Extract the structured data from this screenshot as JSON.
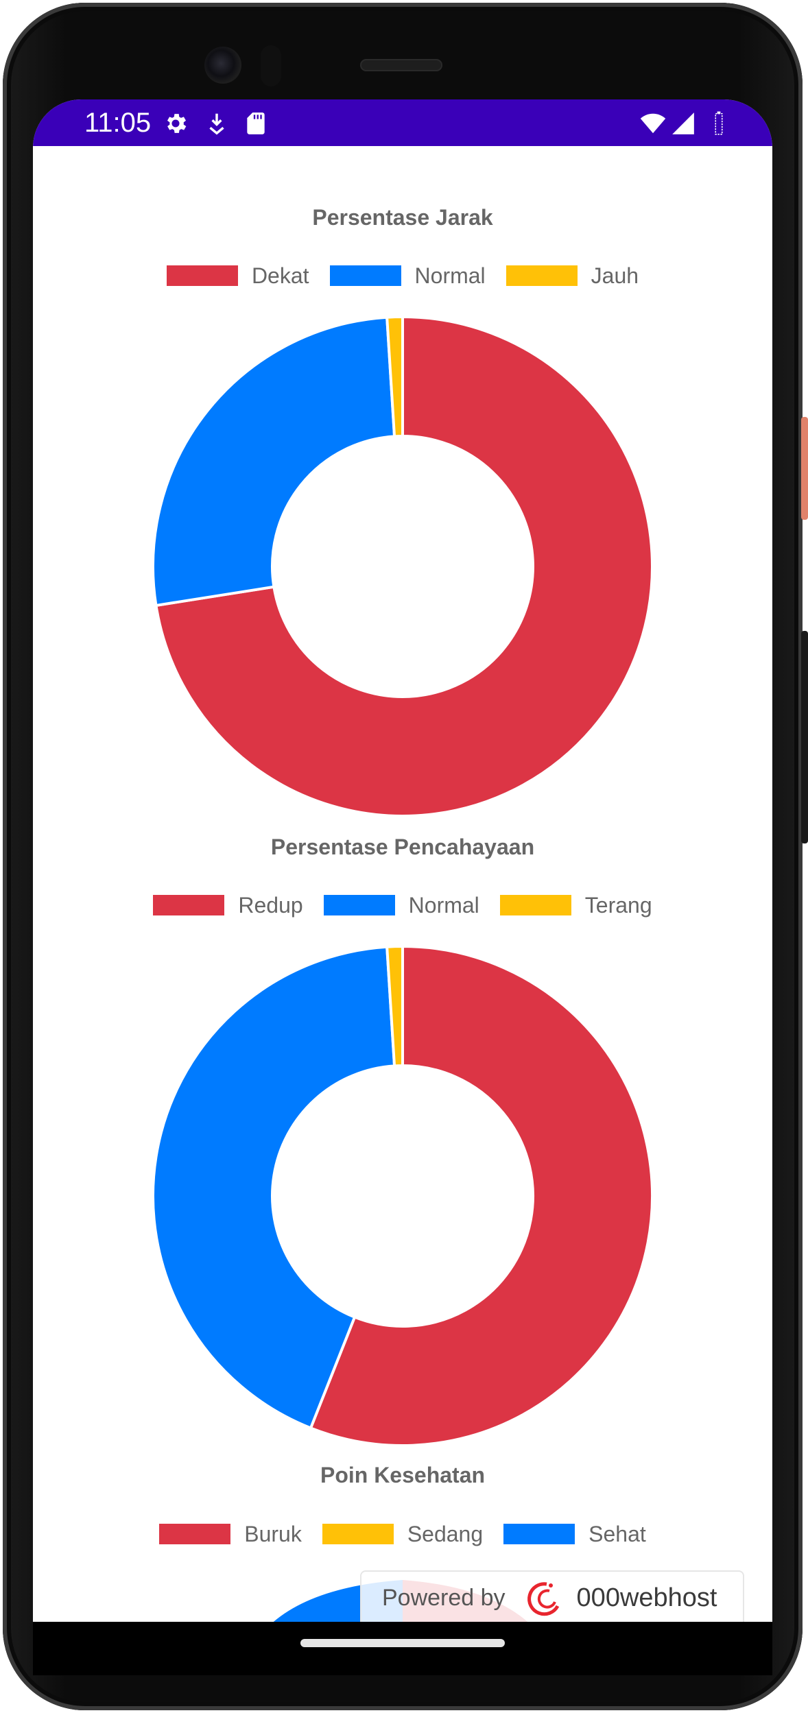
{
  "status_bar": {
    "time": "11:05",
    "background": "#3a00b8",
    "icons_left": [
      "gear-icon",
      "download-icon",
      "sd-card-icon"
    ],
    "icons_right": [
      "wifi-icon",
      "signal-icon",
      "battery-icon"
    ]
  },
  "colors": {
    "red": "#dc3545",
    "blue": "#007bff",
    "yellow": "#ffc107",
    "title_text": "#666666"
  },
  "charts": [
    {
      "title": "Persentase Jarak",
      "legend": [
        {
          "label": "Dekat",
          "color": "#dc3545"
        },
        {
          "label": "Normal",
          "color": "#007bff"
        },
        {
          "label": "Jauh",
          "color": "#ffc107"
        }
      ]
    },
    {
      "title": "Persentase Pencahayaan",
      "legend": [
        {
          "label": "Redup",
          "color": "#dc3545"
        },
        {
          "label": "Normal",
          "color": "#007bff"
        },
        {
          "label": "Terang",
          "color": "#ffc107"
        }
      ]
    },
    {
      "title": "Poin Kesehatan",
      "legend": [
        {
          "label": "Buruk",
          "color": "#dc3545"
        },
        {
          "label": "Sedang",
          "color": "#ffc107"
        },
        {
          "label": "Sehat",
          "color": "#007bff"
        }
      ]
    }
  ],
  "chart_data": [
    {
      "type": "pie",
      "title": "Persentase Jarak",
      "categories": [
        "Dekat",
        "Normal",
        "Jauh"
      ],
      "values": [
        72.5,
        26.5,
        1.0
      ]
    },
    {
      "type": "pie",
      "title": "Persentase Pencahayaan",
      "categories": [
        "Redup",
        "Normal",
        "Terang"
      ],
      "values": [
        56.0,
        43.0,
        1.0
      ]
    }
  ],
  "footer": {
    "powered_by": "Powered by",
    "brand": "000webhost"
  }
}
